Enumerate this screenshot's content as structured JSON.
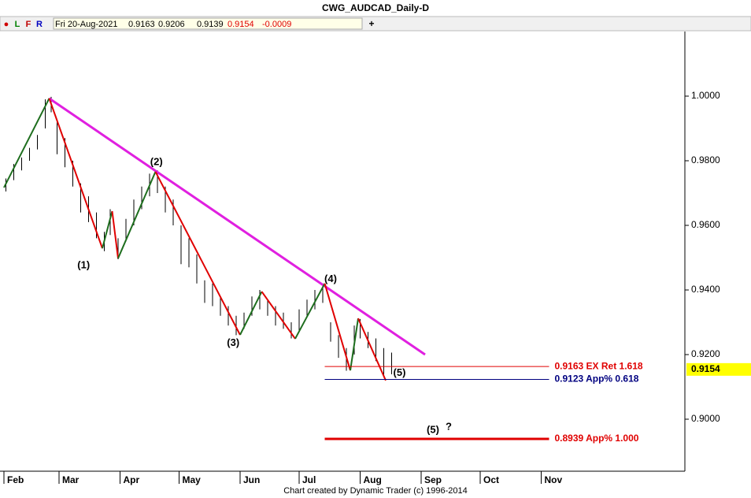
{
  "chart_data": {
    "type": "price",
    "title": "CWG_AUDCAD_Daily-D",
    "toolbar": {
      "buttons": [
        "●",
        "L",
        "F",
        "R"
      ],
      "button_colors": [
        "#d00000",
        "#008000",
        "#c00000",
        "#0000c0"
      ],
      "plus": "+"
    },
    "quote": {
      "date": "Fri 20-Aug-2021",
      "open": 0.9163,
      "high": 0.9206,
      "low": 0.9139,
      "close": 0.9154,
      "change": -0.0009,
      "labels": [
        "0.9163",
        "0.9206",
        "0.9139",
        "0.9154",
        "-0.0009"
      ]
    },
    "footer": "Chart created by Dynamic Trader  (c) 1996-2014",
    "xlim": [
      30,
      378
    ],
    "xticks": [
      {
        "value": 32,
        "label": "Feb"
      },
      {
        "value": 60,
        "label": "Mar"
      },
      {
        "value": 91,
        "label": "Apr"
      },
      {
        "value": 121,
        "label": "May"
      },
      {
        "value": 152,
        "label": "Jun"
      },
      {
        "value": 182,
        "label": "Jul"
      },
      {
        "value": 213,
        "label": "Aug"
      },
      {
        "value": 244,
        "label": "Sep"
      },
      {
        "value": 274,
        "label": "Oct"
      },
      {
        "value": 305,
        "label": "Nov"
      }
    ],
    "ylim": [
      0.8839,
      1.02
    ],
    "yticks": [
      {
        "value": 1.0,
        "label": "1.0000"
      },
      {
        "value": 0.98,
        "label": "0.9800"
      },
      {
        "value": 0.96,
        "label": "0.9600"
      },
      {
        "value": 0.94,
        "label": "0.9400"
      },
      {
        "value": 0.92,
        "label": "0.9200"
      },
      {
        "value": 0.9,
        "label": "0.9000"
      }
    ],
    "last_price": {
      "value": 0.9154,
      "label": "0.9154",
      "color": "#ffff00"
    },
    "bars": {
      "color": "#000000",
      "x": [
        33,
        37,
        41,
        45,
        49,
        53,
        56,
        59,
        63,
        67,
        71,
        75,
        79,
        83,
        86,
        90,
        94,
        98,
        102,
        106,
        110,
        114,
        118,
        122,
        126,
        130,
        134,
        138,
        142,
        146,
        150,
        154,
        158,
        162,
        166,
        170,
        174,
        178,
        182,
        186,
        190,
        194,
        198,
        202,
        206,
        210,
        213,
        217,
        221,
        225,
        229
      ],
      "high": [
        0.9745,
        0.979,
        0.981,
        0.984,
        0.988,
        0.999,
        0.9998,
        0.992,
        0.987,
        0.98,
        0.973,
        0.969,
        0.964,
        0.958,
        0.965,
        0.956,
        0.962,
        0.968,
        0.972,
        0.976,
        0.977,
        0.972,
        0.968,
        0.96,
        0.956,
        0.951,
        0.943,
        0.942,
        0.938,
        0.935,
        0.932,
        0.933,
        0.938,
        0.94,
        0.937,
        0.935,
        0.933,
        0.93,
        0.934,
        0.937,
        0.94,
        0.942,
        0.93,
        0.926,
        0.922,
        0.929,
        0.931,
        0.927,
        0.925,
        0.922,
        0.9206
      ],
      "low": [
        0.9705,
        0.974,
        0.977,
        0.98,
        0.9835,
        0.99,
        0.995,
        0.982,
        0.978,
        0.972,
        0.964,
        0.961,
        0.956,
        0.952,
        0.957,
        0.9495,
        0.955,
        0.96,
        0.965,
        0.969,
        0.97,
        0.964,
        0.96,
        0.948,
        0.947,
        0.942,
        0.936,
        0.935,
        0.932,
        0.929,
        0.926,
        0.928,
        0.932,
        0.934,
        0.932,
        0.929,
        0.928,
        0.925,
        0.927,
        0.932,
        0.934,
        0.936,
        0.924,
        0.919,
        0.915,
        0.92,
        0.925,
        0.922,
        0.918,
        0.913,
        0.9139
      ]
    },
    "waves": {
      "up_color": "#1e6e1e",
      "down_color": "#e00000",
      "x": [
        32,
        55,
        82,
        87,
        90,
        109,
        152,
        163,
        180,
        195,
        208,
        212,
        226
      ],
      "values": [
        0.9717,
        0.9993,
        0.9529,
        0.9644,
        0.9498,
        0.9766,
        0.9261,
        0.9395,
        0.9249,
        0.942,
        0.9151,
        0.9312,
        0.912
      ]
    },
    "trendline": {
      "color": "#e020e0",
      "x": [
        55,
        246
      ],
      "values": [
        0.9993,
        0.92
      ]
    },
    "levels": [
      {
        "value": 0.9163,
        "label": "0.9163 EX Ret 1.618",
        "color": "#e00000",
        "width": 1,
        "x": [
          195,
          309
        ]
      },
      {
        "value": 0.9123,
        "label": "0.9123 App% 0.618",
        "color": "#000080",
        "width": 1,
        "x": [
          195,
          309
        ]
      },
      {
        "value": 0.8939,
        "label": "0.8939 App% 1.000",
        "color": "#e00000",
        "width": 3,
        "x": [
          195,
          309
        ]
      }
    ],
    "annotations": [
      {
        "text": "(1)",
        "x": 72.5,
        "y": 0.9475
      },
      {
        "text": "(2)",
        "x": 109.5,
        "y": 0.9795
      },
      {
        "text": "(3)",
        "x": 148.5,
        "y": 0.9235
      },
      {
        "text": "(4)",
        "x": 198,
        "y": 0.9433
      },
      {
        "text": "(5)",
        "x": 233,
        "y": 0.9143
      },
      {
        "text": "(5)",
        "x": 250,
        "y": 0.8966
      },
      {
        "text": "?",
        "x": 258,
        "y": 0.8975
      }
    ]
  }
}
